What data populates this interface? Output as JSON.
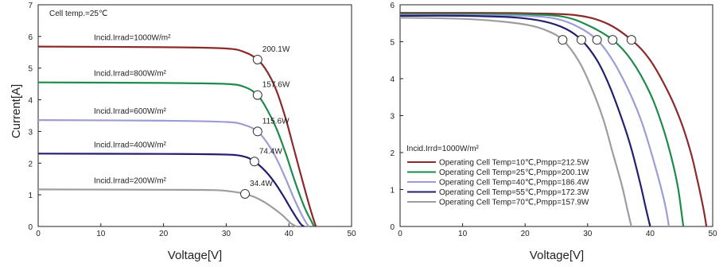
{
  "chart_data": [
    {
      "type": "line",
      "xlabel": "Voltage[V]",
      "ylabel": "Current[A]",
      "xlim": [
        0,
        50
      ],
      "ylim": [
        0,
        7
      ],
      "xticks": [
        0,
        10,
        20,
        30,
        40,
        50
      ],
      "yticks": [
        0,
        1,
        2,
        3,
        4,
        5,
        6,
        7
      ],
      "annotation": "Cell temp.=25℃",
      "grid": false,
      "series": [
        {
          "name": "Incid.Irrad=1000W/m²",
          "color": "#8b2a2a",
          "mpp_label": "200.1W",
          "mpp": [
            35.0,
            5.27
          ],
          "x": [
            0,
            20,
            30,
            33,
            35,
            36.5,
            38,
            39.5,
            41,
            42.5,
            43.5,
            44.3
          ],
          "y": [
            5.68,
            5.66,
            5.62,
            5.5,
            5.27,
            4.9,
            4.3,
            3.4,
            2.3,
            1.2,
            0.5,
            0
          ]
        },
        {
          "name": "Incid.Irrad=800W/m²",
          "color": "#1e8a4c",
          "mpp_label": "157.6W",
          "mpp": [
            35.0,
            4.15
          ],
          "x": [
            0,
            20,
            30,
            33,
            35,
            36.5,
            38,
            39.5,
            41,
            42.5,
            43.5,
            44.0
          ],
          "y": [
            4.55,
            4.53,
            4.5,
            4.4,
            4.15,
            3.7,
            3.1,
            2.3,
            1.4,
            0.6,
            0.2,
            0
          ]
        },
        {
          "name": "Incid.Irrad=600W/m²",
          "color": "#9c9cd6",
          "mpp_label": "115.6W",
          "mpp": [
            35.0,
            3.0
          ],
          "x": [
            0,
            20,
            30,
            33,
            35,
            36.5,
            38,
            39.5,
            41,
            42.5,
            43.2
          ],
          "y": [
            3.36,
            3.34,
            3.3,
            3.2,
            3.0,
            2.65,
            2.15,
            1.5,
            0.8,
            0.2,
            0
          ]
        },
        {
          "name": "Incid.Irrad=400W/m²",
          "color": "#22206e",
          "mpp_label": "74.4W",
          "mpp": [
            34.5,
            2.05
          ],
          "x": [
            0,
            20,
            30,
            33,
            34.5,
            36,
            37.5,
            39,
            40.5,
            41.8,
            42.4
          ],
          "y": [
            2.3,
            2.29,
            2.27,
            2.2,
            2.05,
            1.8,
            1.45,
            1.0,
            0.5,
            0.1,
            0
          ]
        },
        {
          "name": "Incid.Irrad=200W/m²",
          "color": "#9d9d9d",
          "mpp_label": "34.4W",
          "mpp": [
            33.0,
            1.03
          ],
          "x": [
            0,
            20,
            28,
            31,
            33,
            34.5,
            36,
            37.5,
            39,
            40.3,
            41.2
          ],
          "y": [
            1.17,
            1.16,
            1.15,
            1.1,
            1.03,
            0.93,
            0.78,
            0.58,
            0.35,
            0.1,
            0
          ]
        }
      ]
    },
    {
      "type": "line",
      "xlabel": "Voltage[V]",
      "ylabel": "",
      "xlim": [
        0,
        50
      ],
      "ylim": [
        0,
        6
      ],
      "xticks": [
        0,
        10,
        20,
        30,
        40,
        50
      ],
      "yticks": [
        0,
        1,
        2,
        3,
        4,
        5,
        6
      ],
      "annotation": "Incid.Irrd=1000W/m²",
      "grid": false,
      "legend_position": "bottom-left",
      "series": [
        {
          "name": "Operating Cell Temp=10℃,Pmpp=212.5W",
          "color": "#8b2a2a",
          "mpp": [
            37.0,
            5.05
          ],
          "x": [
            0,
            10,
            20,
            28,
            33,
            37,
            40,
            43,
            45,
            46.5,
            47.5,
            48.5,
            49.0
          ],
          "y": [
            5.78,
            5.78,
            5.77,
            5.72,
            5.5,
            5.05,
            4.5,
            3.6,
            2.8,
            2.0,
            1.3,
            0.5,
            0
          ]
        },
        {
          "name": "Operating Cell Temp=25℃,Pmpp=200.1W",
          "color": "#1e8a4c",
          "mpp": [
            34.0,
            5.05
          ],
          "x": [
            0,
            10,
            20,
            26,
            30,
            34,
            37,
            40,
            42,
            43.5,
            44.5,
            45.3
          ],
          "y": [
            5.75,
            5.75,
            5.74,
            5.68,
            5.45,
            5.05,
            4.5,
            3.6,
            2.7,
            1.8,
            1.0,
            0
          ]
        },
        {
          "name": "Operating Cell Temp=40℃,Pmpp=186.4W",
          "color": "#9c9cd6",
          "mpp": [
            31.5,
            5.05
          ],
          "x": [
            0,
            10,
            20,
            25,
            28.5,
            31.5,
            34,
            36.5,
            38.5,
            40,
            41.5,
            42.5,
            43.0
          ],
          "y": [
            5.72,
            5.72,
            5.7,
            5.62,
            5.4,
            5.05,
            4.5,
            3.7,
            2.9,
            2.1,
            1.2,
            0.5,
            0
          ]
        },
        {
          "name": "Operating Cell Temp=55℃,Pmpp=172.3W",
          "color": "#22206e",
          "mpp": [
            29.0,
            5.05
          ],
          "x": [
            0,
            10,
            18,
            23,
            26.5,
            29,
            31.5,
            33.5,
            35.5,
            37,
            38.5,
            39.3,
            40.0
          ],
          "y": [
            5.7,
            5.7,
            5.66,
            5.55,
            5.35,
            5.05,
            4.5,
            3.8,
            2.9,
            2.1,
            1.1,
            0.5,
            0
          ]
        },
        {
          "name": "Operating Cell Temp=70℃,Pmpp=157.9W",
          "color": "#9d9d9d",
          "mpp": [
            26.0,
            5.05
          ],
          "x": [
            0,
            10,
            16,
            20.5,
            23.5,
            26,
            28.5,
            30.5,
            32.5,
            34,
            35.5,
            36.3,
            37.0
          ],
          "y": [
            5.65,
            5.62,
            5.55,
            5.45,
            5.3,
            5.05,
            4.5,
            3.8,
            2.9,
            2.0,
            1.1,
            0.5,
            0
          ]
        }
      ]
    }
  ]
}
